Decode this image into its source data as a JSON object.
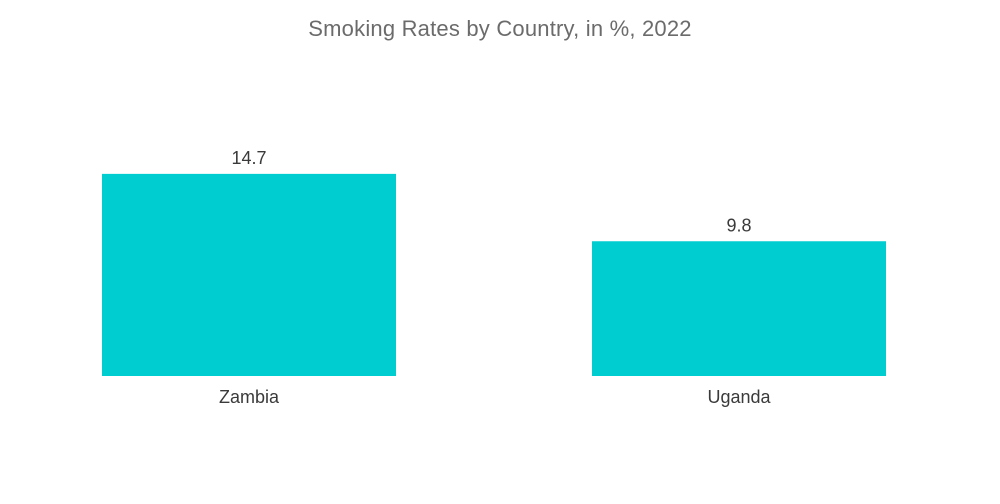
{
  "chart_data": {
    "type": "bar",
    "title": "Smoking Rates by Country, in %, 2022",
    "categories": [
      "Zambia",
      "Uganda"
    ],
    "values": [
      14.7,
      9.8
    ],
    "value_labels": [
      "14.7",
      "9.8"
    ],
    "xlabel": "",
    "ylabel": "",
    "ylim": [
      0,
      16
    ],
    "grid": false,
    "legend": "none",
    "colors": {
      "bar": "#00cdd0"
    }
  }
}
